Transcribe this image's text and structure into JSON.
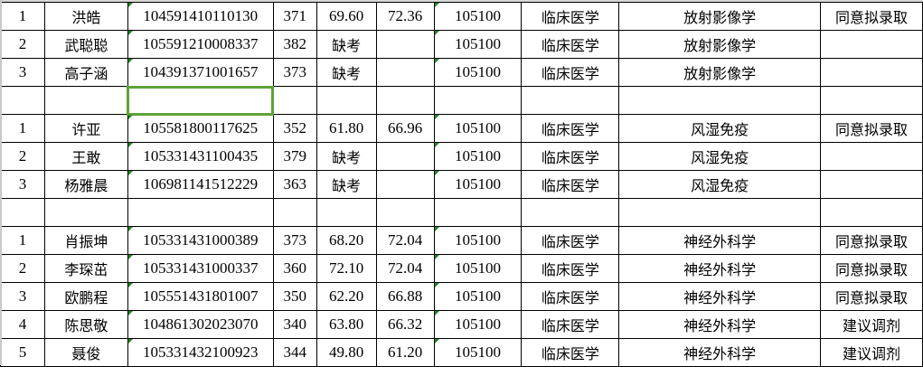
{
  "rows": [
    [
      "1",
      "洪皓",
      "104591410110130",
      "371",
      "69.60",
      "72.36",
      "105100",
      "临床医学",
      "放射影像学",
      "同意拟录取"
    ],
    [
      "2",
      "武聪聪",
      "105591210008337",
      "382",
      "缺考",
      "",
      "105100",
      "临床医学",
      "放射影像学",
      ""
    ],
    [
      "3",
      "高子涵",
      "104391371001657",
      "373",
      "缺考",
      "",
      "105100",
      "临床医学",
      "放射影像学",
      ""
    ],
    [
      "",
      "",
      "",
      "",
      "",
      "",
      "",
      "",
      "",
      ""
    ],
    [
      "1",
      "许亚",
      "105581800117625",
      "352",
      "61.80",
      "66.96",
      "105100",
      "临床医学",
      "风湿免疫",
      "同意拟录取"
    ],
    [
      "2",
      "王敢",
      "105331431100435",
      "379",
      "缺考",
      "",
      "105100",
      "临床医学",
      "风湿免疫",
      ""
    ],
    [
      "3",
      "杨雅晨",
      "106981141512229",
      "363",
      "缺考",
      "",
      "105100",
      "临床医学",
      "风湿免疫",
      ""
    ],
    [
      "",
      "",
      "",
      "",
      "",
      "",
      "",
      "",
      "",
      ""
    ],
    [
      "1",
      "肖振坤",
      "105331431000389",
      "373",
      "68.20",
      "72.04",
      "105100",
      "临床医学",
      "神经外科学",
      "同意拟录取"
    ],
    [
      "2",
      "李琛茁",
      "105331431000337",
      "360",
      "72.10",
      "72.04",
      "105100",
      "临床医学",
      "神经外科学",
      "同意拟录取"
    ],
    [
      "3",
      "欧鹏程",
      "105551431801007",
      "350",
      "62.20",
      "66.88",
      "105100",
      "临床医学",
      "神经外科学",
      "同意拟录取"
    ],
    [
      "4",
      "陈思敬",
      "104861302023070",
      "340",
      "63.80",
      "66.32",
      "105100",
      "临床医学",
      "神经外科学",
      "建议调剂"
    ],
    [
      "5",
      "聂俊",
      "105331432100923",
      "344",
      "49.80",
      "61.20",
      "105100",
      "临床医学",
      "神经外科学",
      "建议调剂"
    ]
  ],
  "selected_cell": {
    "row": 4,
    "column": 3
  },
  "accent_color": "#5ea33a"
}
